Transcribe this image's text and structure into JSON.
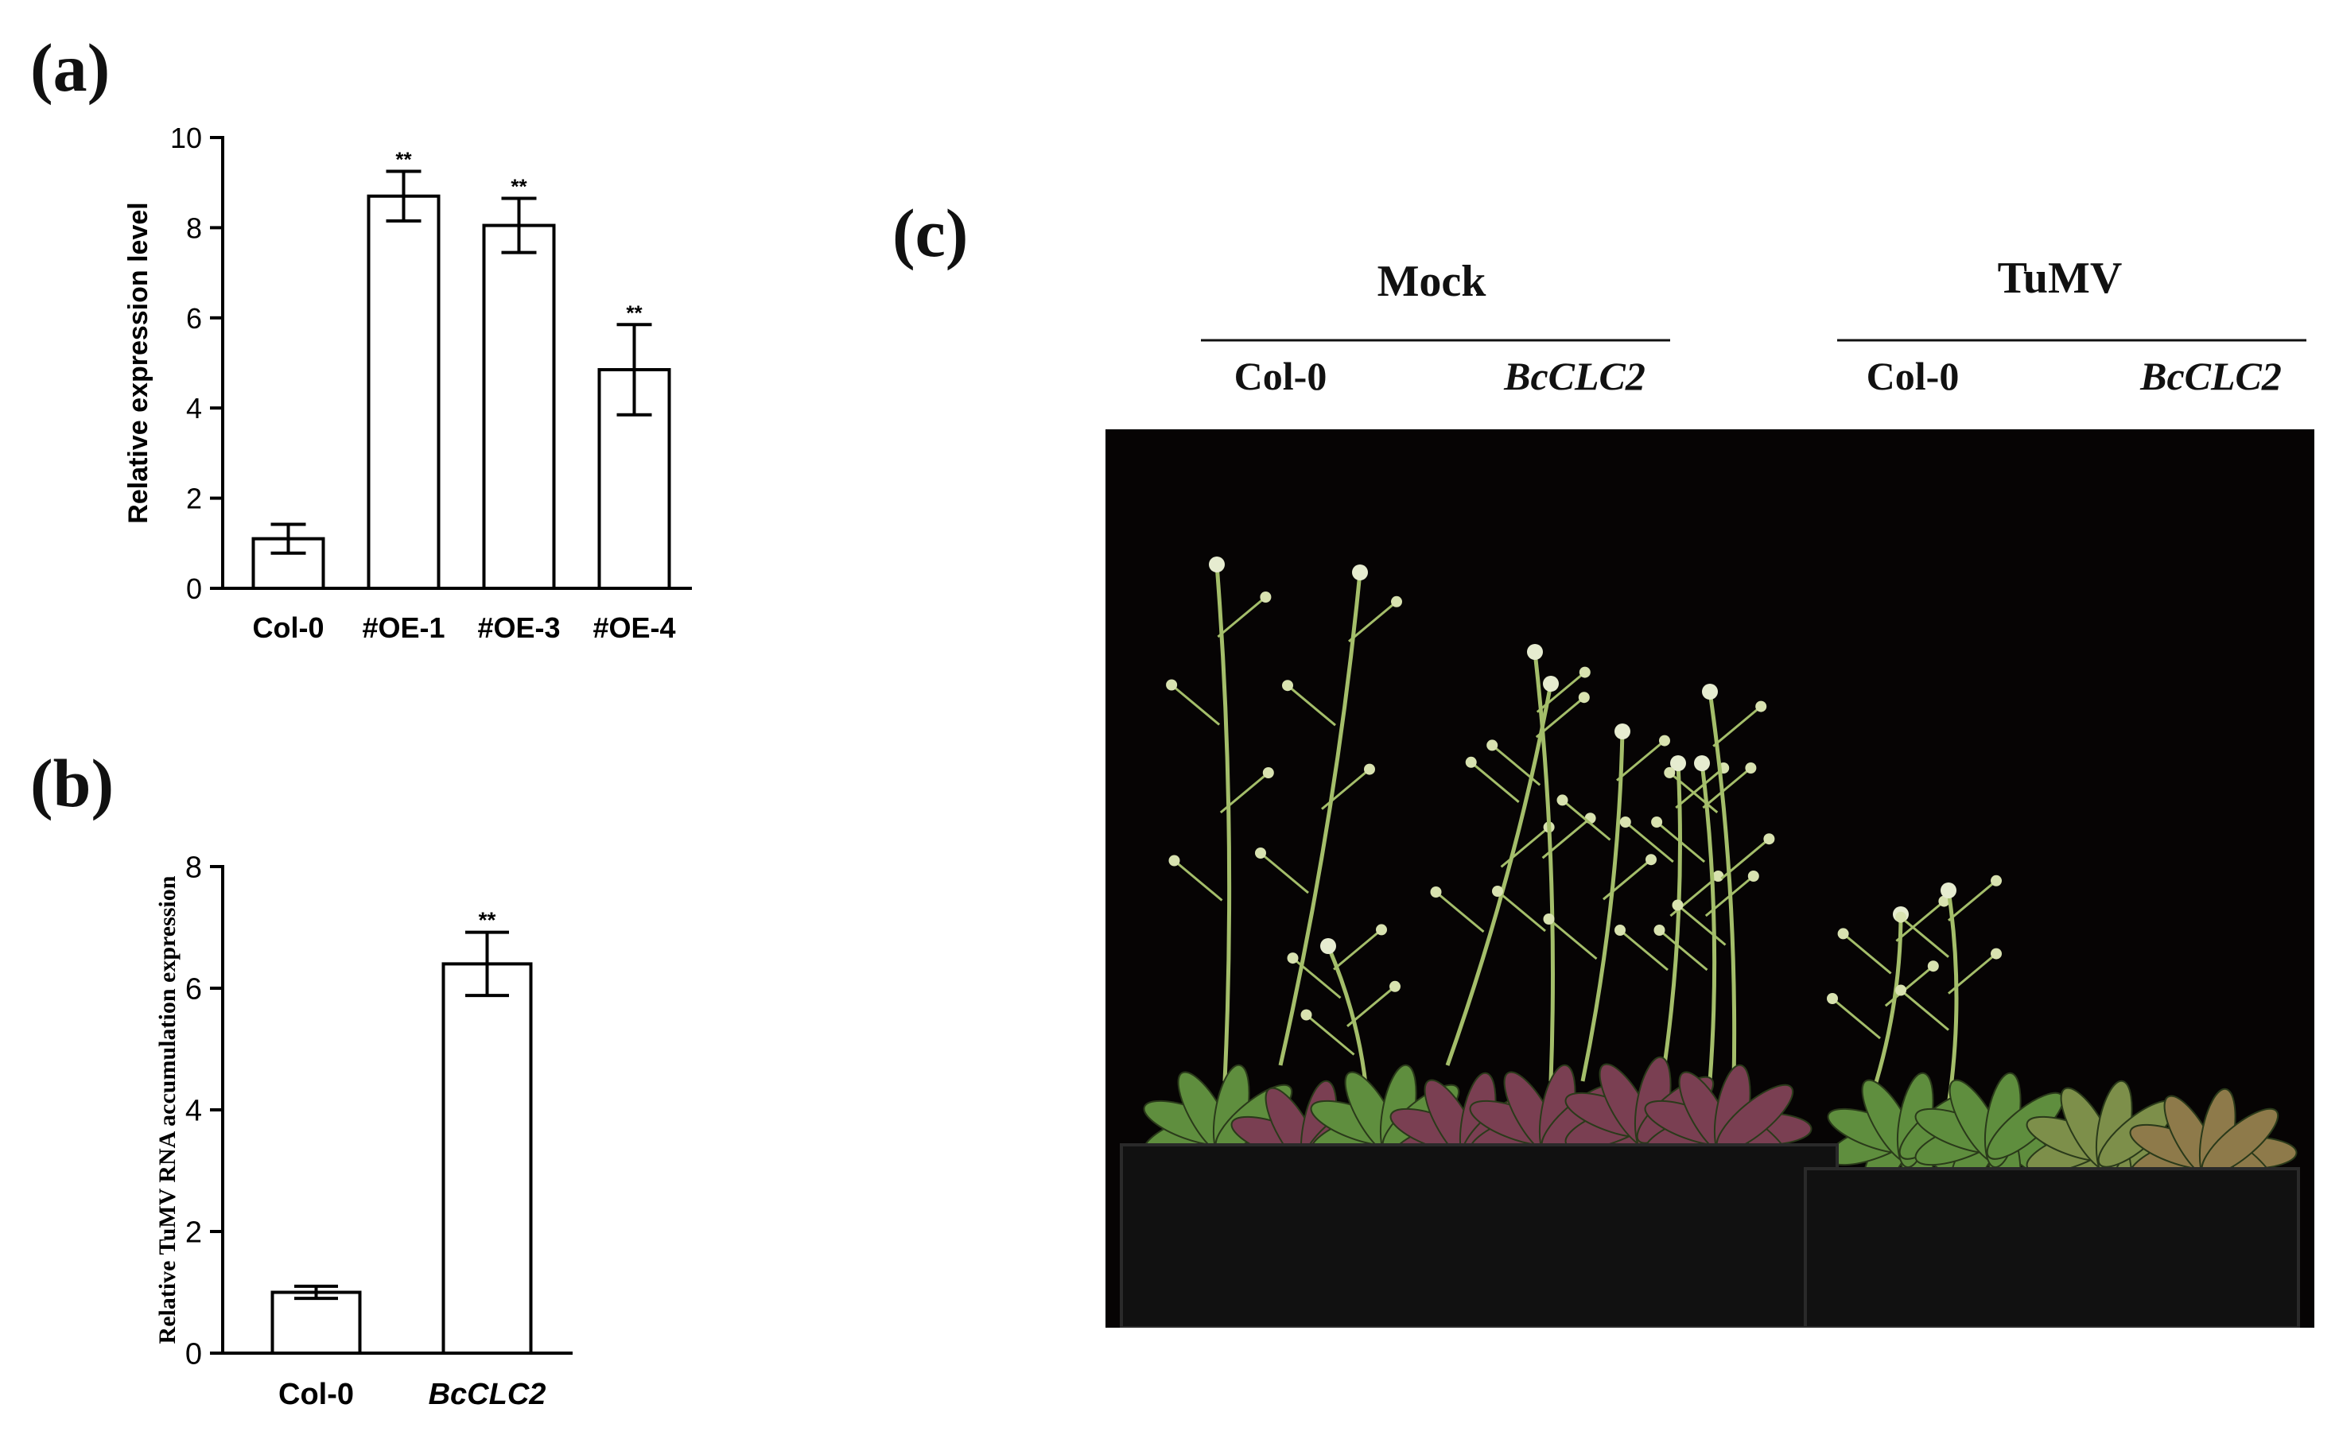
{
  "panel_labels": {
    "a": "(a)",
    "b": "(b)",
    "c": "(c)"
  },
  "chart_data": [
    {
      "id": "a",
      "type": "bar",
      "categories": [
        "Col-0",
        "#OE-1",
        "#OE-3",
        "#OE-4"
      ],
      "series": [
        {
          "values": [
            1.1,
            8.7,
            8.05,
            4.85
          ],
          "errors": [
            0.32,
            0.55,
            0.6,
            1.0
          ]
        }
      ],
      "significance": [
        "",
        "**",
        "**",
        "**"
      ],
      "title": "",
      "xlabel": "",
      "ylabel": "Relative expression level",
      "ylim": [
        0,
        10
      ],
      "yticks": [
        0,
        2,
        4,
        6,
        8,
        10
      ],
      "grid": false
    },
    {
      "id": "b",
      "type": "bar",
      "categories": [
        "Col-0",
        "BcCLC2"
      ],
      "series": [
        {
          "values": [
            1.0,
            6.4
          ],
          "errors": [
            0.1,
            0.52
          ]
        }
      ],
      "significance": [
        "",
        "**"
      ],
      "title": "",
      "xlabel": "",
      "ylabel": "Relative TuMV RNA accumulation expression",
      "ylim": [
        0,
        8
      ],
      "yticks": [
        0,
        2,
        4,
        6,
        8
      ],
      "grid": false
    }
  ],
  "figure_c": {
    "groups": [
      "Mock",
      "TuMV"
    ],
    "columns": [
      "Col-0",
      "BcCLC2",
      "Col-0",
      "BcCLC2"
    ],
    "colors": {
      "background": "#000000",
      "leaf_green": "#5f8e3e",
      "leaf_purple": "#7a3f52",
      "stem": "#a4be6a"
    }
  }
}
